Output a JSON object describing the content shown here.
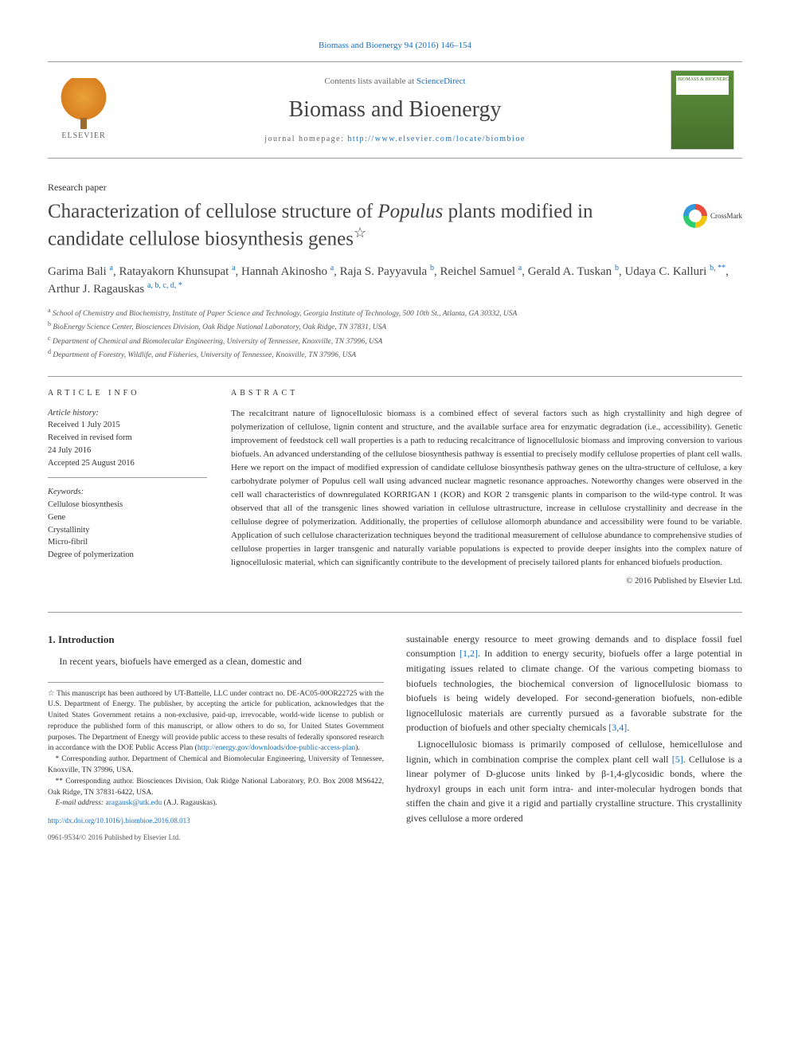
{
  "citation": "Biomass and Bioenergy 94 (2016) 146–154",
  "banner": {
    "contents_prefix": "Contents lists available at ",
    "contents_link": "ScienceDirect",
    "journal": "Biomass and Bioenergy",
    "homepage_prefix": "journal homepage: ",
    "homepage_url": "http://www.elsevier.com/locate/biombioe",
    "publisher": "ELSEVIER",
    "cover_label": "BIOMASS & BIOENERGY"
  },
  "paper_type": "Research paper",
  "title_pre": "Characterization of cellulose structure of ",
  "title_em": "Populus",
  "title_post": " plants modified in candidate cellulose biosynthesis genes",
  "crossmark": "CrossMark",
  "authors_html": "Garima Bali <sup>a</sup>, Ratayakorn Khunsupat <sup>a</sup>, Hannah Akinosho <sup>a</sup>, Raja S. Payyavula <sup>b</sup>, Reichel Samuel <sup>a</sup>, Gerald A. Tuskan <sup>b</sup>, Udaya C. Kalluri <sup>b, **</sup>, Arthur J. Ragauskas <sup>a, b, c, d, *</sup>",
  "affiliations": [
    {
      "s": "a",
      "t": "School of Chemistry and Biochemistry, Institute of Paper Science and Technology, Georgia Institute of Technology, 500 10th St., Atlanta, GA 30332, USA"
    },
    {
      "s": "b",
      "t": "BioEnergy Science Center, Biosciences Division, Oak Ridge National Laboratory, Oak Ridge, TN 37831, USA"
    },
    {
      "s": "c",
      "t": "Department of Chemical and Biomolecular Engineering, University of Tennessee, Knoxville, TN 37996, USA"
    },
    {
      "s": "d",
      "t": "Department of Forestry, Wildlife, and Fisheries, University of Tennessee, Knoxville, TN 37996, USA"
    }
  ],
  "article_info": {
    "heading": "ARTICLE INFO",
    "history_label": "Article history:",
    "history": [
      "Received 1 July 2015",
      "Received in revised form",
      "24 July 2016",
      "Accepted 25 August 2016"
    ],
    "keywords_label": "Keywords:",
    "keywords": [
      "Cellulose biosynthesis",
      "Gene",
      "Crystallinity",
      "Micro-fibril",
      "Degree of polymerization"
    ]
  },
  "abstract": {
    "heading": "ABSTRACT",
    "text": "The recalcitrant nature of lignocellulosic biomass is a combined effect of several factors such as high crystallinity and high degree of polymerization of cellulose, lignin content and structure, and the available surface area for enzymatic degradation (i.e., accessibility). Genetic improvement of feedstock cell wall properties is a path to reducing recalcitrance of lignocellulosic biomass and improving conversion to various biofuels. An advanced understanding of the cellulose biosynthesis pathway is essential to precisely modify cellulose properties of plant cell walls. Here we report on the impact of modified expression of candidate cellulose biosynthesis pathway genes on the ultra-structure of cellulose, a key carbohydrate polymer of Populus cell wall using advanced nuclear magnetic resonance approaches. Noteworthy changes were observed in the cell wall characteristics of downregulated KORRIGAN 1 (KOR) and KOR 2 transgenic plants in comparison to the wild-type control. It was observed that all of the transgenic lines showed variation in cellulose ultrastructure, increase in cellulose crystallinity and decrease in the cellulose degree of polymerization. Additionally, the properties of cellulose allomorph abundance and accessibility were found to be variable. Application of such cellulose characterization techniques beyond the traditional measurement of cellulose abundance to comprehensive studies of cellulose properties in larger transgenic and naturally variable populations is expected to provide deeper insights into the complex nature of lignocellulosic material, which can significantly contribute to the development of precisely tailored plants for enhanced biofuels production.",
    "copyright": "© 2016 Published by Elsevier Ltd."
  },
  "section1": {
    "heading": "1. Introduction",
    "p1": "In recent years, biofuels have emerged as a clean, domestic and",
    "p2_a": "sustainable energy resource to meet growing demands and to displace fossil fuel consumption ",
    "p2_link1": "[1,2]",
    "p2_b": ". In addition to energy security, biofuels offer a large potential in mitigating issues related to climate change. Of the various competing biomass to biofuels technologies, the biochemical conversion of lignocellulosic biomass to biofuels is being widely developed. For second-generation biofuels, non-edible lignocellulosic materials are currently pursued as a favorable substrate for the production of biofuels and other specialty chemicals ",
    "p2_link2": "[3,4]",
    "p2_c": ".",
    "p3_a": "Lignocellulosic biomass is primarily composed of cellulose, hemicellulose and lignin, which in combination comprise the complex plant cell wall ",
    "p3_link": "[5]",
    "p3_b": ". Cellulose is a linear polymer of D-glucose units linked by β-1,4-glycosidic bonds, where the hydroxyl groups in each unit form intra- and inter-molecular hydrogen bonds that stiffen the chain and give it a rigid and partially crystalline structure. This crystallinity gives cellulose a more ordered"
  },
  "footnotes": {
    "star_a": "This manuscript has been authored by UT-Battelle, LLC under contract no. DE-AC05-00OR22725 with the U.S. Department of Energy. The publisher, by accepting the article for publication, acknowledges that the United States Government retains a non-exclusive, paid-up, irrevocable, world-wide license to publish or reproduce the published form of this manuscript, or allow others to do so, for United States Government purposes. The Department of Energy will provide public access to these results of federally sponsored research in accordance with the DOE Public Access Plan (",
    "star_link": "http://energy.gov/downloads/doe-public-access-plan",
    "star_b": ").",
    "corr1": "* Corresponding author. Department of Chemical and Biomolecular Engineering, University of Tennessee, Knoxville, TN 37996, USA.",
    "corr2": "** Corresponding author. Biosciences Division, Oak Ridge National Laboratory, P.O. Box 2008 MS6422, Oak Ridge, TN 37831-6422, USA.",
    "email_label": "E-mail address: ",
    "email": "aragausk@utk.edu",
    "email_tail": " (A.J. Ragauskas)."
  },
  "footer": {
    "doi": "http://dx.doi.org/10.1016/j.biombioe.2016.08.013",
    "issn": "0961-9534/© 2016 Published by Elsevier Ltd."
  },
  "colors": {
    "link": "#1a6fbf",
    "text": "#333333",
    "rule": "#999999"
  }
}
